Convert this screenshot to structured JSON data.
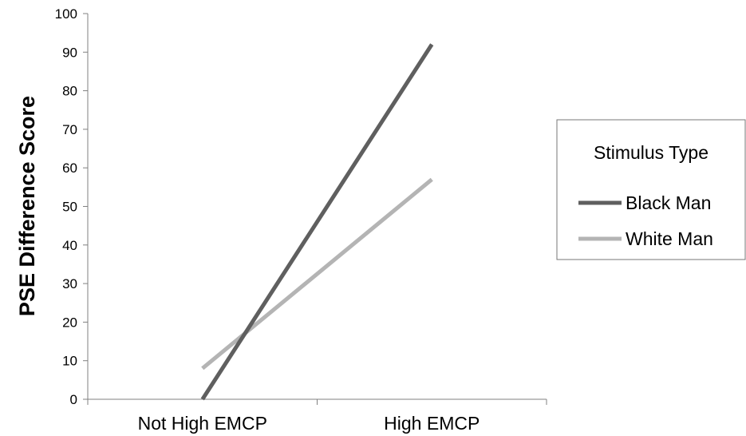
{
  "chart_data": {
    "type": "line",
    "categories": [
      "Not High EMCP",
      "High EMCP"
    ],
    "series": [
      {
        "name": "Black Man",
        "values": [
          0,
          92
        ],
        "color": "#5f5f5f"
      },
      {
        "name": "White Man",
        "values": [
          8,
          57
        ],
        "color": "#b4b4b4"
      }
    ],
    "ylabel": "PSE Difference Score",
    "xlabel": "",
    "ylim": [
      0,
      100
    ],
    "yticks": [
      0,
      10,
      20,
      30,
      40,
      50,
      60,
      70,
      80,
      90,
      100
    ],
    "grid": false,
    "legend": {
      "title": "Stimulus Type",
      "position": "right"
    }
  }
}
